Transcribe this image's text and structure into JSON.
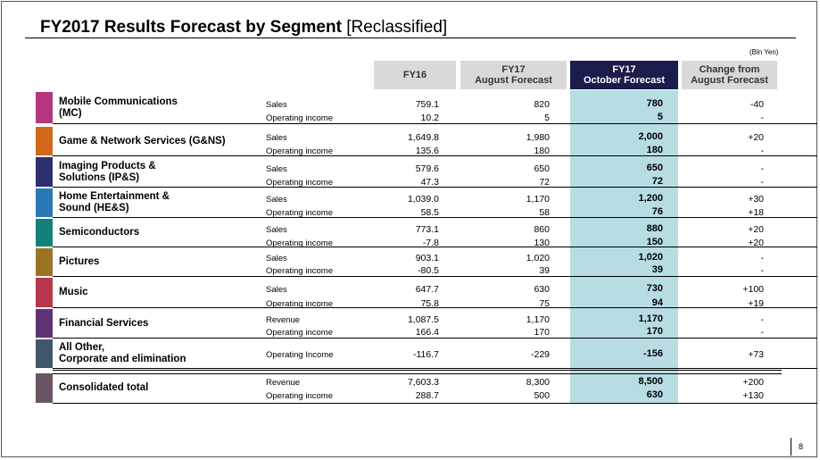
{
  "title": "FY2017 Results Forecast by Segment",
  "title_suffix": " [Reclassified]",
  "unit": "(Bln Yen)",
  "headers": {
    "fy16": "FY16",
    "aug": [
      "FY17",
      "August Forecast"
    ],
    "oct": [
      "FY17",
      "October Forecast"
    ],
    "change": [
      "Change from",
      "August Forecast"
    ]
  },
  "colors": {
    "header_dark": "#1b1c4c",
    "highlight": "#b7dde3",
    "header_grey": "#d9d9d9"
  },
  "segments": [
    {
      "name": "Mobile Communications\n(MC)",
      "color": "#b5357f",
      "rows": [
        {
          "label": "Sales",
          "fy16": "759.1",
          "aug": "820",
          "oct": "780",
          "change": "-40"
        },
        {
          "label": "Operating income",
          "fy16": "10.2",
          "aug": "5",
          "oct": "5",
          "change": "-"
        }
      ]
    },
    {
      "name": "Game & Network Services (G&NS)",
      "color": "#d0671b",
      "rows": [
        {
          "label": "Sales",
          "fy16": "1,649.8",
          "aug": "1,980",
          "oct": "2,000",
          "change": "+20"
        },
        {
          "label": "Operating income",
          "fy16": "135.6",
          "aug": "180",
          "oct": "180",
          "change": "-"
        }
      ]
    },
    {
      "name": "Imaging Products &\nSolutions (IP&S)",
      "color": "#2c2f6e",
      "rows": [
        {
          "label": "Sales",
          "fy16": "579.6",
          "aug": "650",
          "oct": "650",
          "change": "-"
        },
        {
          "label": "Operating income",
          "fy16": "47.3",
          "aug": "72",
          "oct": "72",
          "change": "-"
        }
      ]
    },
    {
      "name": "Home Entertainment &\nSound (HE&S)",
      "color": "#2b78b6",
      "rows": [
        {
          "label": "Sales",
          "fy16": "1,039.0",
          "aug": "1,170",
          "oct": "1,200",
          "change": "+30"
        },
        {
          "label": "Operating income",
          "fy16": "58.5",
          "aug": "58",
          "oct": "76",
          "change": "+18"
        }
      ]
    },
    {
      "name": "Semiconductors",
      "color": "#13807a",
      "rows": [
        {
          "label": "Sales",
          "fy16": "773.1",
          "aug": "860",
          "oct": "880",
          "change": "+20"
        },
        {
          "label": "Operating income",
          "fy16": "-7.8",
          "aug": "130",
          "oct": "150",
          "change": "+20"
        }
      ]
    },
    {
      "name": "Pictures",
      "color": "#9a7424",
      "rows": [
        {
          "label": "Sales",
          "fy16": "903.1",
          "aug": "1,020",
          "oct": "1,020",
          "change": "-"
        },
        {
          "label": "Operating income",
          "fy16": "-80.5",
          "aug": "39",
          "oct": "39",
          "change": "-"
        }
      ]
    },
    {
      "name": "Music",
      "color": "#b9374d",
      "rows": [
        {
          "label": "Sales",
          "fy16": "647.7",
          "aug": "630",
          "oct": "730",
          "change": "+100"
        },
        {
          "label": "Operating income",
          "fy16": "75.8",
          "aug": "75",
          "oct": "94",
          "change": "+19"
        }
      ]
    },
    {
      "name": "Financial Services",
      "color": "#5e3274",
      "rows": [
        {
          "label": "Revenue",
          "fy16": "1,087.5",
          "aug": "1,170",
          "oct": "1,170",
          "change": "-"
        },
        {
          "label": "Operating income",
          "fy16": "166.4",
          "aug": "170",
          "oct": "170",
          "change": "-"
        }
      ]
    },
    {
      "name": "All Other,\nCorporate and elimination",
      "color": "#40576b",
      "rows": [
        {
          "label": "Operating Income",
          "fy16": "-116.7",
          "aug": "-229",
          "oct": "-156",
          "change": "+73"
        }
      ]
    }
  ],
  "total": {
    "name": "Consolidated total",
    "color": "#6b5564",
    "rows": [
      {
        "label": "Revenue",
        "fy16": "7,603.3",
        "aug": "8,300",
        "oct": "8,500",
        "change": "+200"
      },
      {
        "label": "Operating income",
        "fy16": "288.7",
        "aug": "500",
        "oct": "630",
        "change": "+130"
      }
    ]
  },
  "page_number": "8"
}
